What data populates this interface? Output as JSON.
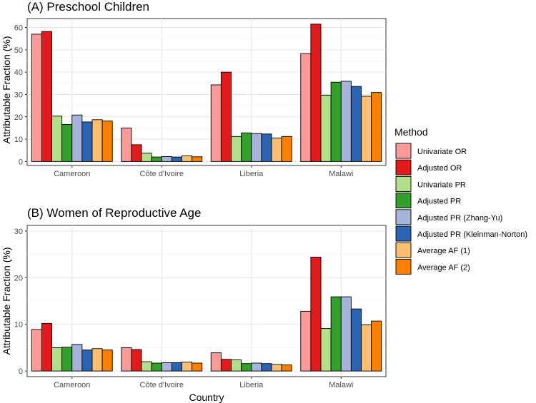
{
  "xlabel": "Country",
  "legend": {
    "title": "Method"
  },
  "chart_data": [
    {
      "type": "bar",
      "title": "(A) Preschool Children",
      "xlabel": "",
      "ylabel": "Attributable Fraction (%)",
      "ylim": [
        -1.8,
        64
      ],
      "yticks": [
        0,
        10,
        20,
        30,
        40,
        50,
        60
      ],
      "categories": [
        "Cameroon",
        "Côte d'Ivoire",
        "Liberia",
        "Malawi"
      ],
      "series": [
        {
          "name": "Univariate OR",
          "color": "#fb9a99",
          "values": [
            57,
            15,
            34.3,
            48.3
          ]
        },
        {
          "name": "Adjusted OR",
          "color": "#e31a1c",
          "values": [
            58.2,
            7.5,
            40,
            61.5
          ]
        },
        {
          "name": "Univariate PR",
          "color": "#b2df8a",
          "values": [
            20.3,
            3.7,
            11.2,
            29.7
          ]
        },
        {
          "name": "Adjusted PR",
          "color": "#33a02c",
          "values": [
            16.6,
            2,
            12.8,
            35.5
          ]
        },
        {
          "name": "Adjusted PR (Zhang-Yu)",
          "color": "#a6b4dc",
          "values": [
            20.8,
            2.2,
            12.5,
            35.9
          ]
        },
        {
          "name": "Adjusted PR (Kleinman-Norton)",
          "color": "#2a64b3",
          "values": [
            17.7,
            2,
            12.3,
            33.6
          ]
        },
        {
          "name": "Average AF (1)",
          "color": "#fdbf6f",
          "values": [
            18.7,
            2.5,
            10.5,
            29.2
          ]
        },
        {
          "name": "Average AF (2)",
          "color": "#ff7f00",
          "values": [
            18.1,
            2.1,
            11.2,
            30.9
          ]
        }
      ]
    },
    {
      "type": "bar",
      "title": "(B) Women of Reproductive Age",
      "xlabel": "Country",
      "ylabel": "Attributable Fraction (%)",
      "ylim": [
        -1.2,
        31.2
      ],
      "yticks": [
        0,
        10,
        20,
        30
      ],
      "categories": [
        "Cameroon",
        "Côte d'Ivoire",
        "Liberia",
        "Malawi"
      ],
      "series": [
        {
          "name": "Univariate OR",
          "color": "#fb9a99",
          "values": [
            8.9,
            5,
            3.9,
            12.8
          ]
        },
        {
          "name": "Adjusted OR",
          "color": "#e31a1c",
          "values": [
            10.2,
            4.6,
            2.5,
            24.4
          ]
        },
        {
          "name": "Univariate PR",
          "color": "#b2df8a",
          "values": [
            5,
            2,
            2.4,
            9.1
          ]
        },
        {
          "name": "Adjusted PR",
          "color": "#33a02c",
          "values": [
            5.1,
            1.7,
            1.6,
            15.9
          ]
        },
        {
          "name": "Adjusted PR (Zhang-Yu)",
          "color": "#a6b4dc",
          "values": [
            5.7,
            1.8,
            1.7,
            15.9
          ]
        },
        {
          "name": "Adjusted PR (Kleinman-Norton)",
          "color": "#2a64b3",
          "values": [
            4.5,
            1.8,
            1.6,
            13.3
          ]
        },
        {
          "name": "Average AF (1)",
          "color": "#fdbf6f",
          "values": [
            4.8,
            1.9,
            1.4,
            9.9
          ]
        },
        {
          "name": "Average AF (2)",
          "color": "#ff7f00",
          "values": [
            4.5,
            1.7,
            1.3,
            10.7
          ]
        }
      ]
    }
  ]
}
